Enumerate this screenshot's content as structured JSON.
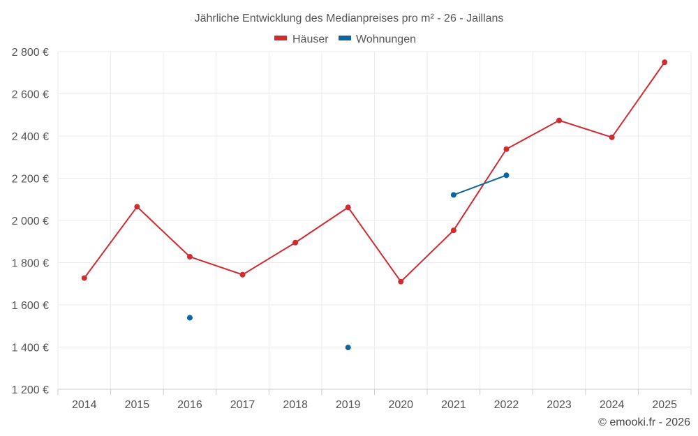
{
  "chart_data": {
    "type": "line",
    "title": "Jährliche Entwicklung des Medianpreises pro m² - 26 - Jaillans",
    "categories": [
      "2014",
      "2015",
      "2016",
      "2017",
      "2018",
      "2019",
      "2020",
      "2021",
      "2022",
      "2023",
      "2024",
      "2025"
    ],
    "y_ticks": [
      "1 200 €",
      "1 400 €",
      "1 600 €",
      "1 800 €",
      "2 000 €",
      "2 200 €",
      "2 400 €",
      "2 600 €",
      "2 800 €"
    ],
    "ylim": [
      1200,
      2800
    ],
    "grid": true,
    "legend_position": "top-center",
    "series": [
      {
        "name": "Häuser",
        "color": "#d12a2f",
        "values": [
          1727,
          2065,
          1828,
          1743,
          1895,
          2062,
          1710,
          1953,
          2338,
          2474,
          2394,
          2750
        ]
      },
      {
        "name": "Wohnungen",
        "color": "#0b65a0",
        "values": [
          null,
          null,
          1539,
          null,
          null,
          1398,
          null,
          2121,
          2214,
          null,
          null,
          null
        ]
      }
    ]
  },
  "credit": "© emooki.fr - 2026"
}
